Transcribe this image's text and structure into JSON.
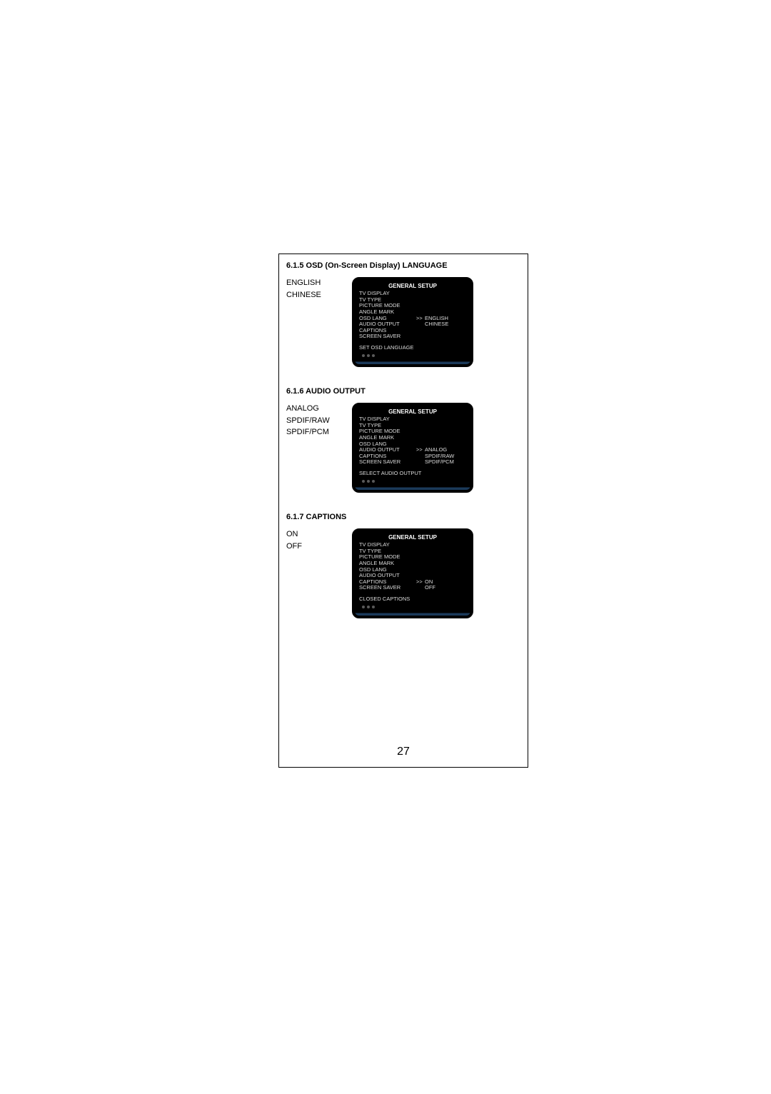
{
  "page_number": "27",
  "sections": [
    {
      "heading": "6.1.5 OSD (On-Screen Display) LANGUAGE",
      "options": [
        "ENGLISH",
        "CHINESE"
      ],
      "osd": {
        "title": "GENERAL SETUP",
        "items": [
          {
            "label": "TV DISPLAY",
            "arrow": "",
            "value": ""
          },
          {
            "label": "TV TYPE",
            "arrow": "",
            "value": ""
          },
          {
            "label": "PICTURE MODE",
            "arrow": "",
            "value": ""
          },
          {
            "label": "ANGLE MARK",
            "arrow": "",
            "value": ""
          },
          {
            "label": "OSD LANG",
            "arrow": ">>",
            "value": "ENGLISH"
          },
          {
            "label": "AUDIO OUTPUT",
            "arrow": "",
            "value": "CHINESE"
          },
          {
            "label": "CAPTIONS",
            "arrow": "",
            "value": ""
          },
          {
            "label": "SCREEN SAVER",
            "arrow": "",
            "value": ""
          }
        ],
        "status": "SET OSD LANGUAGE"
      }
    },
    {
      "heading": "6.1.6 AUDIO OUTPUT",
      "options": [
        "ANALOG",
        "SPDIF/RAW",
        "SPDIF/PCM"
      ],
      "osd": {
        "title": "GENERAL SETUP",
        "items": [
          {
            "label": "TV DISPLAY",
            "arrow": "",
            "value": ""
          },
          {
            "label": "TV TYPE",
            "arrow": "",
            "value": ""
          },
          {
            "label": "PICTURE MODE",
            "arrow": "",
            "value": ""
          },
          {
            "label": "ANGLE MARK",
            "arrow": "",
            "value": ""
          },
          {
            "label": "OSD LANG",
            "arrow": "",
            "value": ""
          },
          {
            "label": "AUDIO OUTPUT",
            "arrow": ">>",
            "value": "ANALOG"
          },
          {
            "label": "CAPTIONS",
            "arrow": "",
            "value": "SPDIF/RAW"
          },
          {
            "label": "SCREEN SAVER",
            "arrow": "",
            "value": "SPDIF/PCM"
          }
        ],
        "status": "SELECT AUDIO OUTPUT"
      }
    },
    {
      "heading": "6.1.7 CAPTIONS",
      "options": [
        "ON",
        "OFF"
      ],
      "osd": {
        "title": "GENERAL SETUP",
        "items": [
          {
            "label": "TV DISPLAY",
            "arrow": "",
            "value": ""
          },
          {
            "label": "TV TYPE",
            "arrow": "",
            "value": ""
          },
          {
            "label": "PICTURE MODE",
            "arrow": "",
            "value": ""
          },
          {
            "label": "ANGLE MARK",
            "arrow": "",
            "value": ""
          },
          {
            "label": "OSD LANG",
            "arrow": "",
            "value": ""
          },
          {
            "label": "AUDIO OUTPUT",
            "arrow": "",
            "value": ""
          },
          {
            "label": "CAPTIONS",
            "arrow": ">>",
            "value": "ON"
          },
          {
            "label": "SCREEN SAVER",
            "arrow": "",
            "value": "OFF"
          }
        ],
        "status": "CLOSED CAPTIONS"
      }
    }
  ]
}
